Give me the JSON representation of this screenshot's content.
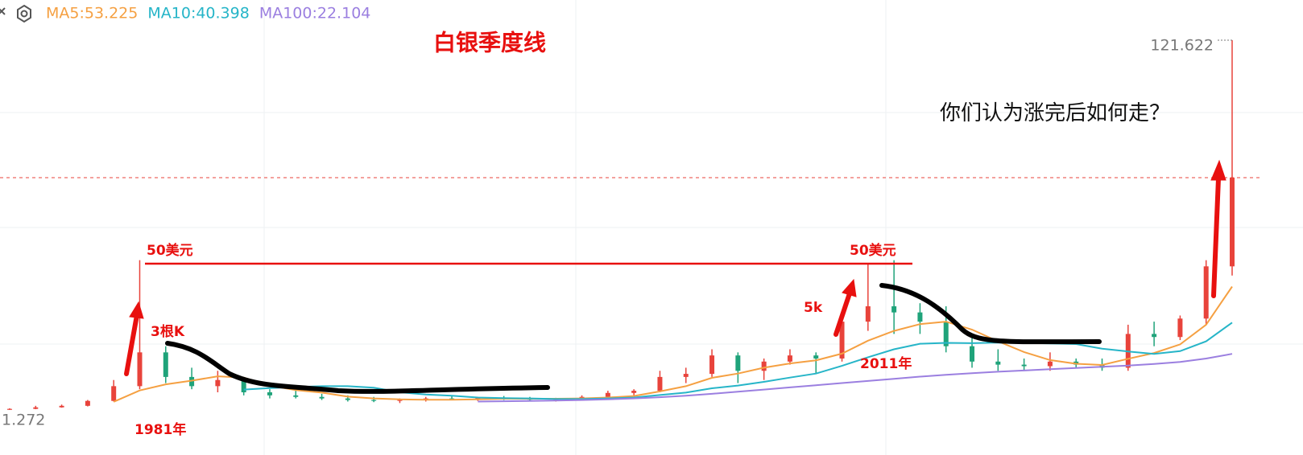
{
  "chart_data": {
    "type": "candlestick",
    "title": "白银季度线",
    "question": "你们认为涨完后如何走？",
    "annotations": {
      "peak_1981": "50美元",
      "peak_2011": "50美元",
      "bars_1981": "3根K",
      "bars_2011": "5k",
      "year_1981": "1981年",
      "year_2011": "2011年"
    },
    "ylim": [
      -8.7,
      134.7
    ],
    "up_color": "#e8433b",
    "down_color": "#1fa37a",
    "open": [
      1.3,
      1.6,
      2.1,
      2.6,
      4.2,
      9,
      20,
      12,
      9,
      11,
      7,
      6,
      5.5,
      5,
      4.5,
      4.2,
      4.5,
      5,
      4.8,
      5.2,
      4.9,
      4.6,
      4.8,
      5.5,
      6.8,
      7.5,
      12,
      13,
      19,
      14,
      17,
      19,
      18,
      30,
      35,
      33,
      30,
      22,
      17,
      16,
      15.5,
      17,
      16,
      15,
      26,
      25,
      31,
      48
    ],
    "high": [
      1.8,
      2.6,
      3,
      4.5,
      11,
      50,
      22,
      15,
      14,
      12,
      8,
      7.5,
      6.5,
      6,
      5.5,
      5,
      5.5,
      6,
      5.5,
      5.8,
      5.5,
      5.2,
      6,
      7.5,
      8,
      14,
      15,
      21,
      20,
      18,
      21,
      20,
      31,
      49,
      50,
      36,
      35,
      25,
      21,
      18,
      20,
      18,
      18,
      29,
      30,
      32,
      50,
      121.622
    ],
    "low": [
      1.272,
      1.5,
      2,
      2.4,
      4,
      8,
      10,
      8,
      7,
      6,
      5,
      5,
      4.5,
      4,
      3.8,
      3.5,
      4,
      4.5,
      4.2,
      4.5,
      4.2,
      4,
      4.5,
      5,
      6,
      7,
      10,
      12,
      10,
      11,
      16,
      13,
      17,
      27,
      26,
      26,
      20,
      15,
      14,
      14,
      14,
      15,
      14,
      14,
      22,
      24,
      29,
      45
    ],
    "close": [
      1.6,
      2.1,
      2.6,
      4.2,
      9,
      20,
      12,
      9,
      11,
      7,
      6,
      5.5,
      5,
      4.5,
      4.2,
      4.5,
      5,
      4.8,
      5.2,
      4.9,
      4.6,
      4.8,
      5.5,
      6.8,
      7.5,
      12,
      13,
      19,
      14,
      17,
      19,
      18,
      30,
      35,
      33,
      30,
      22,
      17,
      16,
      15.5,
      17,
      16,
      15,
      26,
      25,
      31,
      48,
      76.9
    ],
    "series": [
      {
        "name": "MA5:53.225",
        "color": "#f5a042",
        "values": [
          null,
          null,
          null,
          null,
          3.9,
          7.6,
          9.6,
          10.8,
          12.2,
          11.8,
          9.2,
          7.7,
          6.9,
          5.6,
          5.0,
          4.7,
          4.6,
          4.6,
          4.7,
          4.9,
          4.9,
          4.9,
          5.0,
          5.3,
          5.8,
          7.3,
          9.0,
          11.7,
          13.1,
          15.0,
          16.4,
          17.4,
          19.6,
          23.8,
          27.0,
          29.2,
          30.0,
          27.4,
          23.6,
          20.1,
          17.5,
          16.3,
          15.9,
          17.9,
          19.8,
          22.6,
          29.0,
          41.4
        ]
      },
      {
        "name": "MA10:40.398",
        "color": "#26b5c8",
        "values": [
          null,
          null,
          null,
          null,
          null,
          null,
          null,
          null,
          null,
          7.9,
          8.4,
          8.7,
          9.0,
          9.0,
          8.5,
          7.0,
          6.3,
          5.9,
          5.3,
          5.1,
          5.0,
          4.8,
          4.8,
          5.0,
          5.3,
          6.1,
          6.9,
          8.3,
          9.2,
          10.4,
          11.8,
          13.1,
          15.6,
          18.4,
          21.0,
          22.8,
          23.1,
          23.0,
          23.2,
          23.1,
          22.9,
          22.7,
          21.2,
          20.3,
          19.5,
          20.4,
          23.6,
          29.7
        ]
      },
      {
        "name": "MA100:22.104",
        "color": "#9b7fe0",
        "values": [
          null,
          null,
          null,
          null,
          null,
          null,
          null,
          null,
          null,
          null,
          null,
          null,
          null,
          null,
          null,
          null,
          null,
          null,
          4.0,
          4.1,
          4.2,
          4.3,
          4.5,
          4.7,
          5.0,
          5.4,
          5.9,
          6.5,
          7.2,
          7.9,
          8.6,
          9.3,
          10.0,
          10.7,
          11.4,
          12.1,
          12.7,
          13.2,
          13.7,
          14.1,
          14.5,
          14.9,
          15.3,
          15.7,
          16.2,
          16.9,
          18.0,
          19.5
        ]
      }
    ]
  }
}
